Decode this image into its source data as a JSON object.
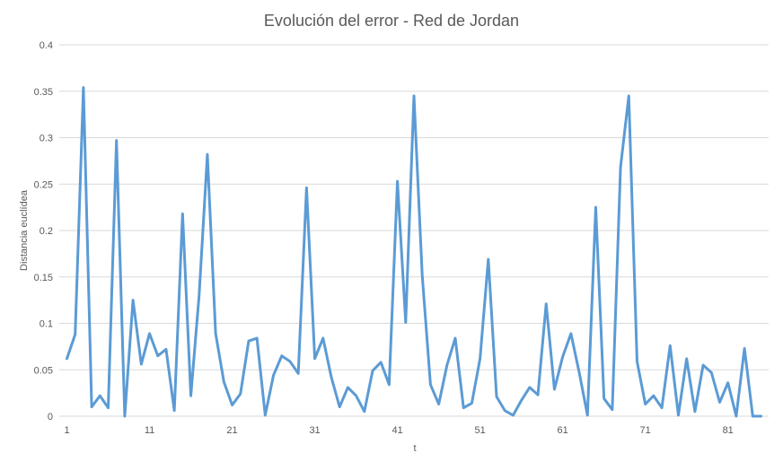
{
  "chart_data": {
    "type": "line",
    "title": "Evolución del error - Red de Jordan",
    "xlabel": "t",
    "ylabel": "Distancia euclídea",
    "ylim": [
      0,
      0.4
    ],
    "yticks": [
      0,
      0.05,
      0.1,
      0.15,
      0.2,
      0.25,
      0.3,
      0.35,
      0.4
    ],
    "ytick_labels": [
      "0",
      "0.05",
      "0.1",
      "0.15",
      "0.2",
      "0.25",
      "0.3",
      "0.35",
      "0.4"
    ],
    "xlim": [
      1,
      85
    ],
    "xticks": [
      1,
      11,
      21,
      31,
      41,
      51,
      61,
      71,
      81
    ],
    "xtick_labels": [
      "1",
      "11",
      "21",
      "31",
      "41",
      "51",
      "61",
      "71",
      "81"
    ],
    "grid": true,
    "legend": "none",
    "line_color": "#5B9BD5",
    "series": [
      {
        "x": [
          1,
          2,
          3,
          4,
          5,
          6,
          7,
          8,
          9,
          10,
          11,
          12,
          13,
          14,
          15,
          16,
          17,
          18,
          19,
          20,
          21,
          22,
          23,
          24,
          25,
          26,
          27,
          28,
          29,
          30,
          31,
          32,
          33,
          34,
          35,
          36,
          37,
          38,
          39,
          40,
          41,
          42,
          43,
          44,
          45,
          46,
          47,
          48,
          49,
          50,
          51,
          52,
          53,
          54,
          55,
          56,
          57,
          58,
          59,
          60,
          61,
          62,
          63,
          64,
          65,
          66,
          67,
          68,
          69,
          70,
          71,
          72,
          73,
          74,
          75,
          76,
          77,
          78,
          79,
          80,
          81,
          82,
          83,
          84,
          85
        ],
        "values": [
          0.062,
          0.088,
          0.354,
          0.01,
          0.022,
          0.009,
          0.297,
          0.0,
          0.125,
          0.056,
          0.089,
          0.065,
          0.072,
          0.006,
          0.218,
          0.022,
          0.13,
          0.282,
          0.089,
          0.037,
          0.012,
          0.024,
          0.081,
          0.084,
          0.001,
          0.044,
          0.065,
          0.059,
          0.046,
          0.246,
          0.062,
          0.084,
          0.042,
          0.01,
          0.031,
          0.022,
          0.005,
          0.049,
          0.058,
          0.034,
          0.253,
          0.101,
          0.345,
          0.152,
          0.034,
          0.013,
          0.055,
          0.084,
          0.009,
          0.014,
          0.062,
          0.169,
          0.021,
          0.006,
          0.001,
          0.017,
          0.031,
          0.023,
          0.121,
          0.029,
          0.064,
          0.089,
          0.047,
          0.001,
          0.225,
          0.019,
          0.007,
          0.268,
          0.345,
          0.059,
          0.013,
          0.022,
          0.009,
          0.076,
          0.001,
          0.062,
          0.005,
          0.055,
          0.047,
          0.015,
          0.036,
          0.0,
          0.073,
          0.0,
          0.0
        ]
      }
    ]
  }
}
